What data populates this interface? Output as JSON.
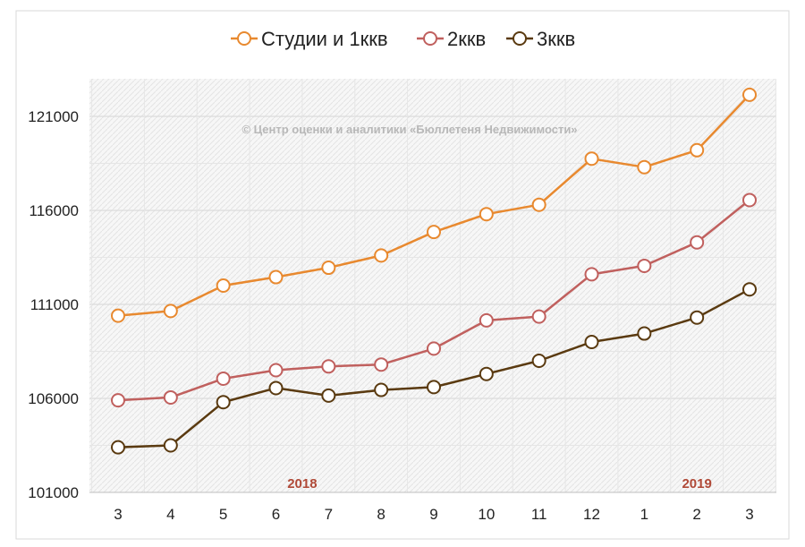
{
  "chart_data": {
    "type": "line",
    "categories": [
      "3",
      "4",
      "5",
      "6",
      "7",
      "8",
      "9",
      "10",
      "11",
      "12",
      "1",
      "2",
      "3"
    ],
    "series": [
      {
        "name": "Студии и 1ккв",
        "color": "#e8892f",
        "values": [
          110400,
          110650,
          112000,
          112450,
          112950,
          113600,
          114850,
          115800,
          116300,
          118750,
          118300,
          119200,
          122150
        ]
      },
      {
        "name": "2ккв",
        "color": "#c0605e",
        "values": [
          105900,
          106050,
          107050,
          107500,
          107700,
          107800,
          108650,
          110150,
          110350,
          112600,
          113050,
          114300,
          116550
        ]
      },
      {
        "name": "3ккв",
        "color": "#5a3a10",
        "values": [
          103400,
          103500,
          105800,
          106550,
          106150,
          106450,
          106600,
          107300,
          108000,
          109000,
          109450,
          110300,
          111800
        ]
      }
    ],
    "yticks": [
      101000,
      106000,
      111000,
      116000,
      121000
    ],
    "ylim": [
      101000,
      123000
    ],
    "year_labels": [
      {
        "text": "2018",
        "category_index": 3.5
      },
      {
        "text": "2019",
        "category_index": 11
      }
    ],
    "watermark": "© Центр оценки и аналитики «Бюллетеня Недвижимости»",
    "title": "",
    "xlabel": "",
    "ylabel": "",
    "grid": true,
    "legend_position": "top-center"
  }
}
